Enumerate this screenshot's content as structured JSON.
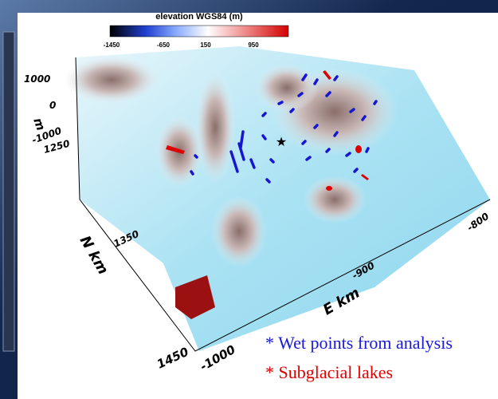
{
  "colorbar": {
    "title": "elevation WGS84 (m)",
    "ticks": [
      -1450,
      -650,
      150,
      950
    ]
  },
  "z_axis": {
    "label": "m",
    "ticks": [
      1000,
      0,
      -1000
    ]
  },
  "n_axis": {
    "label": "N km",
    "ticks": [
      1250,
      1350,
      1450
    ]
  },
  "e_axis": {
    "label": "E km",
    "ticks": [
      -1000,
      -900,
      -800
    ]
  },
  "legend": [
    "* Wet points from analysis",
    "* Subglacial lakes"
  ]
}
